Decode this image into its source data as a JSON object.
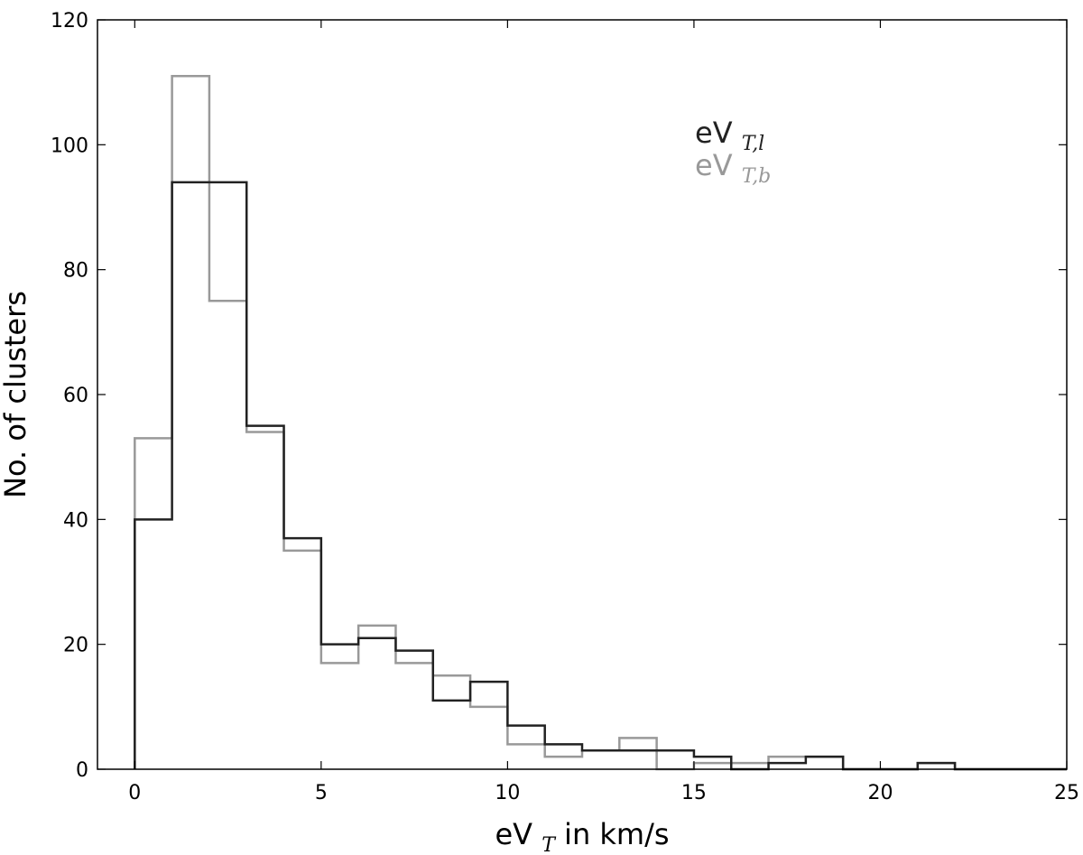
{
  "chart_data": {
    "type": "histogram",
    "xlabel": {
      "main": "eV",
      "sub": "T",
      "rest": " in km/s"
    },
    "ylabel": "No. of clusters",
    "xlim": [
      -1,
      25
    ],
    "ylim": [
      0,
      120
    ],
    "x_ticks": [
      0,
      5,
      10,
      15,
      20,
      25
    ],
    "y_ticks": [
      0,
      20,
      40,
      60,
      80,
      100,
      120
    ],
    "bin_edges": [
      0,
      1,
      2,
      3,
      4,
      5,
      6,
      7,
      8,
      9,
      10,
      11,
      12,
      13,
      14,
      15,
      16,
      17,
      18,
      19,
      20,
      21,
      22,
      23,
      24,
      25
    ],
    "grid": false,
    "legend_placement": "upper-right-center",
    "series": [
      {
        "name": "eV",
        "name_sub": "T,l",
        "color": "#222222",
        "values": [
          40,
          94,
          94,
          55,
          37,
          20,
          21,
          19,
          11,
          14,
          7,
          4,
          3,
          3,
          3,
          2,
          0,
          1,
          2,
          0,
          0,
          1,
          0,
          0,
          0
        ]
      },
      {
        "name": "eV",
        "name_sub": "T,b",
        "color": "#999999",
        "values": [
          53,
          111,
          75,
          54,
          35,
          17,
          23,
          17,
          15,
          10,
          4,
          2,
          3,
          5,
          0,
          1,
          1,
          2,
          2,
          0,
          0,
          1,
          0,
          0,
          0
        ]
      }
    ]
  }
}
